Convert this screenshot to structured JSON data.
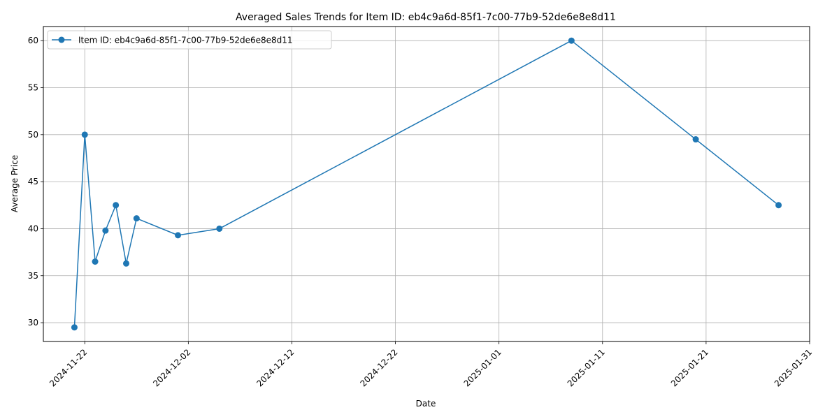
{
  "chart_data": {
    "type": "line",
    "title": "Averaged Sales Trends for Item ID: eb4c9a6d-85f1-7c00-77b9-52de6e8e8d11",
    "xlabel": "Date",
    "ylabel": "Average Price",
    "x_axis_type": "date",
    "xlim": [
      "2024-11-18",
      "2025-01-31"
    ],
    "ylim": [
      28,
      61.5
    ],
    "grid": true,
    "legend_position": "top-left",
    "x_ticks": [
      "2024-11-22",
      "2024-12-02",
      "2024-12-12",
      "2024-12-22",
      "2025-01-01",
      "2025-01-11",
      "2025-01-21",
      "2025-01-31"
    ],
    "y_ticks": [
      30,
      35,
      40,
      45,
      50,
      55,
      60
    ],
    "series": [
      {
        "name": "Item ID: eb4c9a6d-85f1-7c00-77b9-52de6e8e8d11",
        "color": "#1f77b4",
        "marker": "circle",
        "points": [
          {
            "x": "2024-11-21",
            "y": 29.5
          },
          {
            "x": "2024-11-22",
            "y": 50.0
          },
          {
            "x": "2024-11-23",
            "y": 36.5
          },
          {
            "x": "2024-11-24",
            "y": 39.8
          },
          {
            "x": "2024-11-25",
            "y": 42.5
          },
          {
            "x": "2024-11-26",
            "y": 36.3
          },
          {
            "x": "2024-11-27",
            "y": 41.1
          },
          {
            "x": "2024-12-01",
            "y": 39.3
          },
          {
            "x": "2024-12-05",
            "y": 40.0
          },
          {
            "x": "2025-01-08",
            "y": 60.0
          },
          {
            "x": "2025-01-20",
            "y": 49.5
          },
          {
            "x": "2025-01-28",
            "y": 42.5
          }
        ]
      }
    ]
  }
}
